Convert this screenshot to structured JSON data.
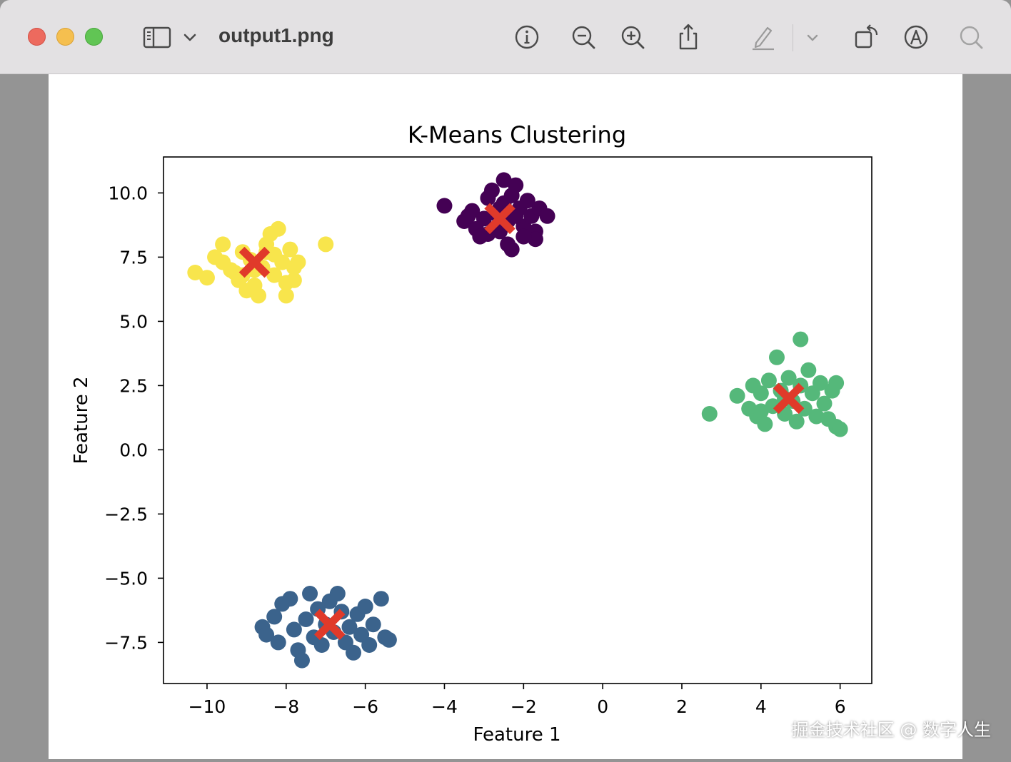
{
  "window": {
    "title": "output1.png",
    "icons": [
      "sidebar-icon",
      "chevron-down-icon",
      "info-icon",
      "zoom-out-icon",
      "zoom-in-icon",
      "share-icon",
      "markup-pen-icon",
      "chevron-down-icon",
      "rotate-icon",
      "annotate-icon",
      "search-icon"
    ]
  },
  "watermark": "掘金技术社区 @ 数字人生",
  "chart_data": {
    "type": "scatter",
    "title": "K-Means Clustering",
    "xlabel": "Feature 1",
    "ylabel": "Feature 2",
    "xlim": [
      -11.1,
      6.8
    ],
    "ylim": [
      -9.1,
      11.4
    ],
    "xticks": [
      -10,
      -8,
      -6,
      -4,
      -2,
      0,
      2,
      4,
      6
    ],
    "yticks": [
      -7.5,
      -5.0,
      -2.5,
      0.0,
      2.5,
      5.0,
      7.5,
      10.0
    ],
    "xtick_labels": [
      "−10",
      "−8",
      "−6",
      "−4",
      "−2",
      "0",
      "2",
      "4",
      "6"
    ],
    "ytick_labels": [
      "−7.5",
      "−5.0",
      "−2.5",
      "0.0",
      "2.5",
      "5.0",
      "7.5",
      "10.0"
    ],
    "grid": false,
    "colors": {
      "cluster_0": "#440154",
      "cluster_1": "#3b638c",
      "cluster_2": "#55b87a",
      "cluster_3": "#f8e54c",
      "centroid": "#e03a2a"
    },
    "series": [
      {
        "cluster": 0,
        "color": "#440154",
        "points": [
          [
            -4.0,
            9.5
          ],
          [
            -3.5,
            8.9
          ],
          [
            -3.3,
            9.3
          ],
          [
            -3.2,
            8.6
          ],
          [
            -3.0,
            9.0
          ],
          [
            -2.9,
            9.8
          ],
          [
            -2.8,
            10.1
          ],
          [
            -2.7,
            9.2
          ],
          [
            -2.6,
            8.5
          ],
          [
            -2.5,
            9.6
          ],
          [
            -2.5,
            10.5
          ],
          [
            -2.4,
            8.9
          ],
          [
            -2.3,
            9.9
          ],
          [
            -2.2,
            10.3
          ],
          [
            -2.1,
            9.4
          ],
          [
            -2.0,
            8.7
          ],
          [
            -1.9,
            9.7
          ],
          [
            -1.8,
            9.1
          ],
          [
            -1.7,
            8.5
          ],
          [
            -1.6,
            9.4
          ],
          [
            -1.4,
            9.1
          ],
          [
            -1.7,
            8.2
          ],
          [
            -2.4,
            8.0
          ],
          [
            -2.3,
            7.8
          ],
          [
            -2.9,
            8.4
          ],
          [
            -3.1,
            8.3
          ],
          [
            -3.4,
            9.1
          ],
          [
            -2.2,
            9.1
          ],
          [
            -2.0,
            8.3
          ],
          [
            -2.6,
            9.4
          ]
        ]
      },
      {
        "cluster": 1,
        "color": "#3b638c",
        "points": [
          [
            -8.6,
            -6.9
          ],
          [
            -8.5,
            -7.2
          ],
          [
            -8.3,
            -6.5
          ],
          [
            -8.2,
            -7.5
          ],
          [
            -8.1,
            -6.0
          ],
          [
            -7.9,
            -5.8
          ],
          [
            -7.8,
            -7.0
          ],
          [
            -7.7,
            -7.8
          ],
          [
            -7.6,
            -8.2
          ],
          [
            -7.5,
            -6.6
          ],
          [
            -7.4,
            -5.6
          ],
          [
            -7.3,
            -7.3
          ],
          [
            -7.2,
            -6.2
          ],
          [
            -7.1,
            -7.6
          ],
          [
            -7.0,
            -6.8
          ],
          [
            -6.9,
            -5.9
          ],
          [
            -6.8,
            -7.1
          ],
          [
            -6.7,
            -5.6
          ],
          [
            -6.6,
            -6.3
          ],
          [
            -6.5,
            -7.5
          ],
          [
            -6.4,
            -6.9
          ],
          [
            -6.3,
            -7.9
          ],
          [
            -6.2,
            -6.4
          ],
          [
            -6.1,
            -7.2
          ],
          [
            -6.0,
            -6.1
          ],
          [
            -5.9,
            -7.6
          ],
          [
            -5.8,
            -6.8
          ],
          [
            -5.6,
            -5.8
          ],
          [
            -5.5,
            -7.3
          ],
          [
            -5.4,
            -7.4
          ]
        ]
      },
      {
        "cluster": 2,
        "color": "#55b87a",
        "points": [
          [
            2.7,
            1.4
          ],
          [
            3.4,
            2.1
          ],
          [
            3.7,
            1.6
          ],
          [
            3.8,
            2.5
          ],
          [
            3.9,
            1.3
          ],
          [
            4.0,
            2.2
          ],
          [
            4.1,
            1.0
          ],
          [
            4.2,
            2.7
          ],
          [
            4.3,
            1.7
          ],
          [
            4.4,
            3.6
          ],
          [
            4.5,
            2.3
          ],
          [
            4.6,
            1.4
          ],
          [
            4.7,
            2.8
          ],
          [
            4.8,
            1.9
          ],
          [
            4.9,
            1.1
          ],
          [
            5.0,
            2.5
          ],
          [
            5.0,
            4.3
          ],
          [
            5.1,
            1.6
          ],
          [
            5.2,
            3.1
          ],
          [
            5.3,
            2.2
          ],
          [
            5.4,
            1.3
          ],
          [
            5.5,
            2.6
          ],
          [
            5.6,
            1.8
          ],
          [
            5.7,
            1.2
          ],
          [
            5.8,
            2.3
          ],
          [
            5.9,
            0.9
          ],
          [
            5.9,
            2.6
          ],
          [
            6.0,
            0.8
          ],
          [
            4.0,
            1.5
          ],
          [
            4.6,
            2.0
          ]
        ]
      },
      {
        "cluster": 3,
        "color": "#f8e54c",
        "points": [
          [
            -10.3,
            6.9
          ],
          [
            -10.0,
            6.7
          ],
          [
            -9.8,
            7.5
          ],
          [
            -9.6,
            7.3
          ],
          [
            -9.6,
            8.0
          ],
          [
            -9.4,
            7.0
          ],
          [
            -9.2,
            6.6
          ],
          [
            -9.1,
            7.7
          ],
          [
            -9.0,
            6.2
          ],
          [
            -8.9,
            7.4
          ],
          [
            -8.8,
            6.4
          ],
          [
            -8.7,
            6.0
          ],
          [
            -8.6,
            7.1
          ],
          [
            -8.5,
            8.0
          ],
          [
            -8.4,
            8.4
          ],
          [
            -8.3,
            6.8
          ],
          [
            -8.2,
            8.6
          ],
          [
            -8.1,
            7.3
          ],
          [
            -8.0,
            6.5
          ],
          [
            -8.0,
            6.0
          ],
          [
            -7.9,
            7.8
          ],
          [
            -7.8,
            7.1
          ],
          [
            -7.7,
            7.3
          ],
          [
            -7.8,
            6.6
          ],
          [
            -7.0,
            8.0
          ],
          [
            -9.3,
            6.9
          ],
          [
            -8.3,
            7.6
          ],
          [
            -8.8,
            7.0
          ],
          [
            -9.1,
            6.8
          ],
          [
            -8.5,
            7.7
          ]
        ]
      }
    ],
    "centroids": [
      [
        -2.6,
        9.0
      ],
      [
        -6.9,
        -6.8
      ],
      [
        4.7,
        2.0
      ],
      [
        -8.8,
        7.3
      ]
    ]
  }
}
